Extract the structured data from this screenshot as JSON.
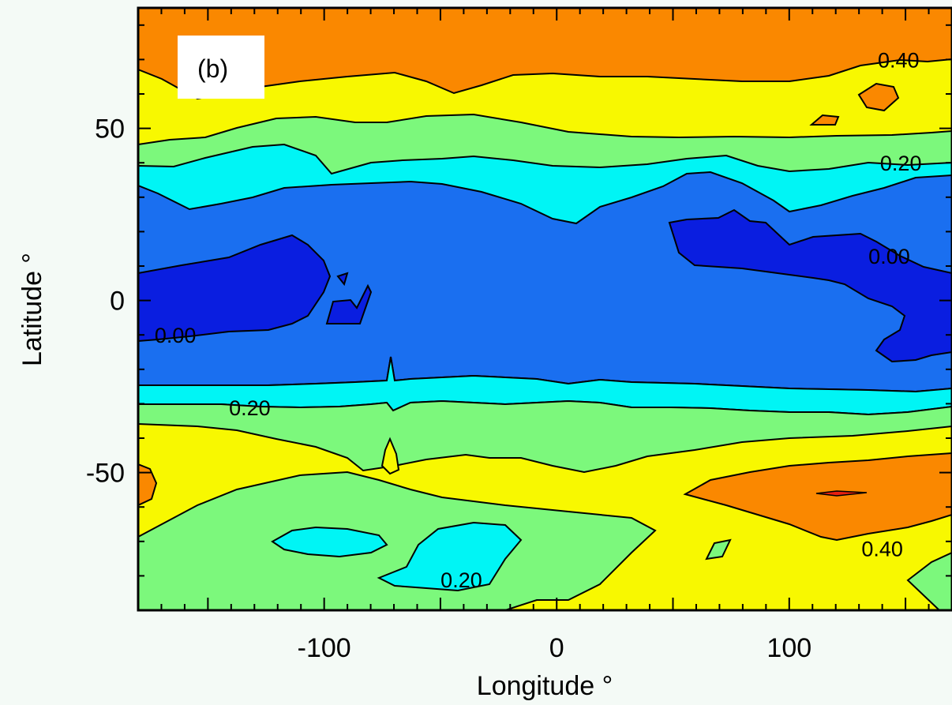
{
  "chart_data": {
    "type": "heatmap",
    "panel_label": "(b)",
    "xlabel": "Longitude °",
    "ylabel": "Latitude °",
    "xlim": [
      -180,
      170
    ],
    "ylim": [
      -90,
      85
    ],
    "x_ticks": [
      -100,
      0,
      100
    ],
    "x_tick_labels": [
      "-100",
      "0",
      "100"
    ],
    "y_ticks": [
      -50,
      0,
      50
    ],
    "y_tick_labels": [
      "-50",
      "0",
      "50"
    ],
    "contour_levels": [
      -0.1,
      0.0,
      0.1,
      0.2,
      0.3,
      0.4,
      0.5
    ],
    "fill_colors": [
      "#0a1ee0",
      "#1a6ff0",
      "#00f5f5",
      "#7cf87c",
      "#f8f800",
      "#fa8800",
      "#e82010"
    ],
    "zonal_boundaries_deg_lat": {
      "level_0.40_north": 65,
      "level_0.30_north": 46,
      "level_0.20_north": 41,
      "level_0.10_north": 31,
      "level_0.10_south": -25,
      "level_0.20_south": -31,
      "level_0.30_south": -38
    },
    "contour_labels": [
      {
        "text": "0.40",
        "lon": 147,
        "lat": 70
      },
      {
        "text": "0.20",
        "lon": 148,
        "lat": 40
      },
      {
        "text": "0.00",
        "lon": 143,
        "lat": 13
      },
      {
        "text": "0.00",
        "lon": -164,
        "lat": -10
      },
      {
        "text": "0.20",
        "lon": -132,
        "lat": -31
      },
      {
        "text": "0.40",
        "lon": 140,
        "lat": -72
      },
      {
        "text": "0.20",
        "lon": -41,
        "lat": -81
      }
    ]
  }
}
